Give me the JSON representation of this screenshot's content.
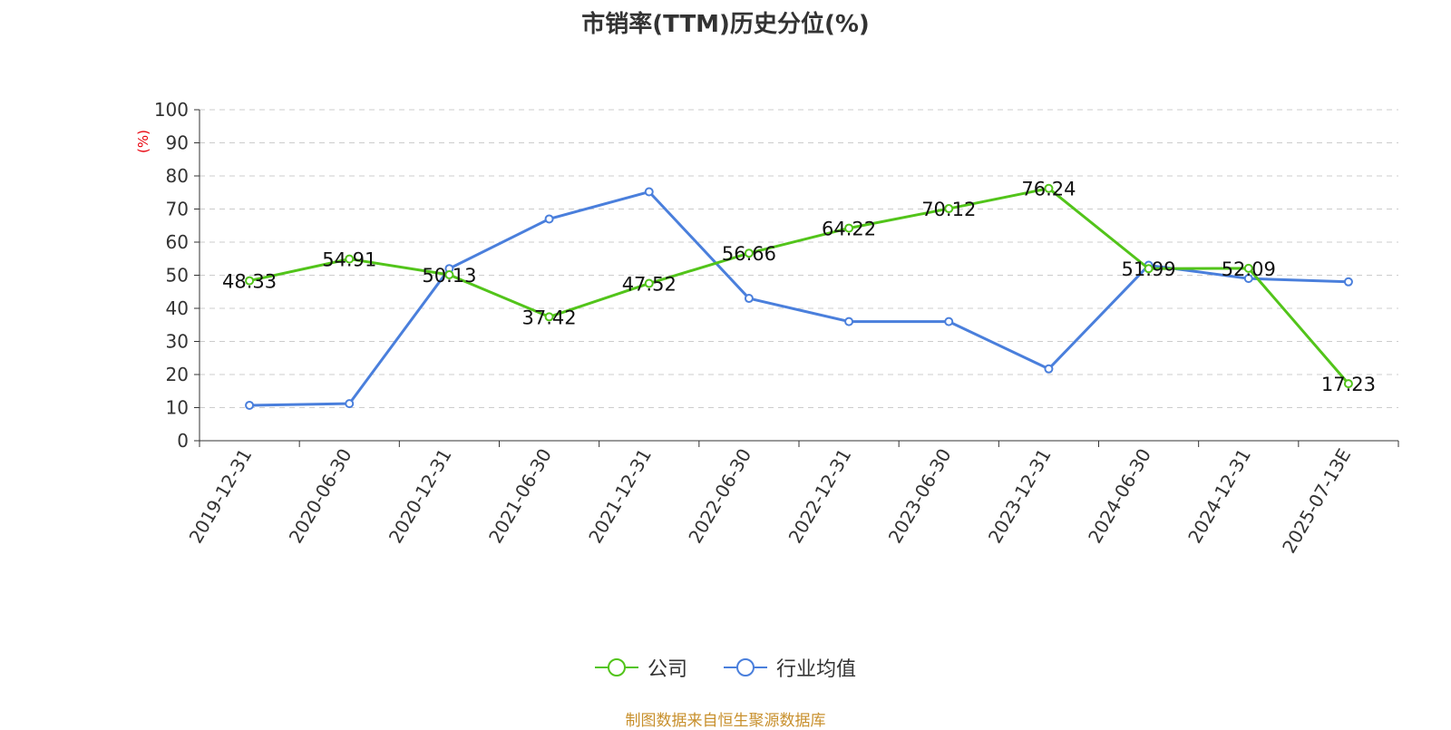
{
  "chart_data": {
    "type": "line",
    "title": "市销率(TTM)历史分位(%)",
    "ylabel": "(%)",
    "ylim": [
      0,
      100
    ],
    "yticks": [
      0,
      10,
      20,
      30,
      40,
      50,
      60,
      70,
      80,
      90,
      100
    ],
    "categories": [
      "2019-12-31",
      "2020-06-30",
      "2020-12-31",
      "2021-06-30",
      "2021-12-31",
      "2022-06-30",
      "2022-12-31",
      "2023-06-30",
      "2023-12-31",
      "2024-06-30",
      "2024-12-31",
      "2025-07-13E"
    ],
    "grid": true,
    "legend_position": "bottom",
    "series": [
      {
        "name": "公司",
        "color": "#52c41a",
        "values": [
          48.33,
          54.91,
          50.13,
          37.42,
          47.52,
          56.66,
          64.22,
          70.12,
          76.24,
          51.99,
          52.09,
          17.23
        ],
        "labels": [
          "48.33",
          "54.91",
          "50.13",
          "37.42",
          "47.52",
          "56.66",
          "64.22",
          "70.12",
          "76.24",
          "51.99",
          "52.09",
          "17.23"
        ]
      },
      {
        "name": "行业均值",
        "color": "#4a7fdc",
        "values": [
          10.7,
          11.2,
          52.0,
          67.0,
          75.2,
          43.0,
          36.0,
          36.0,
          21.7,
          53.0,
          49.0,
          48.0
        ]
      }
    ]
  },
  "source": "制图数据来自恒生聚源数据库"
}
